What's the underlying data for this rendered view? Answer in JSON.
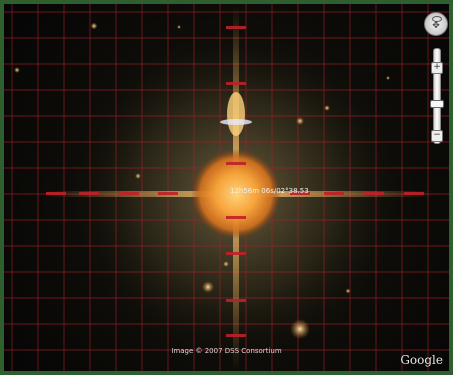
{
  "map": {
    "attribution": "Image © 2007 DSS Consortium",
    "logo": "Google",
    "coordinate_readout": "12h56m 06s/02°38.53",
    "grid_color": "#c0202a",
    "label_color": "#c0202a",
    "star_core_color": "#f6a33a"
  },
  "controls": {
    "nav_icon": "look-around-compass-icon",
    "zoom_in_icon": "plus-icon",
    "zoom_out_icon": "minus-icon",
    "zoom_level": 0.55,
    "zoom_plus_label": "+",
    "zoom_minus_label": "−",
    "nav_arrows_label": "✥"
  }
}
